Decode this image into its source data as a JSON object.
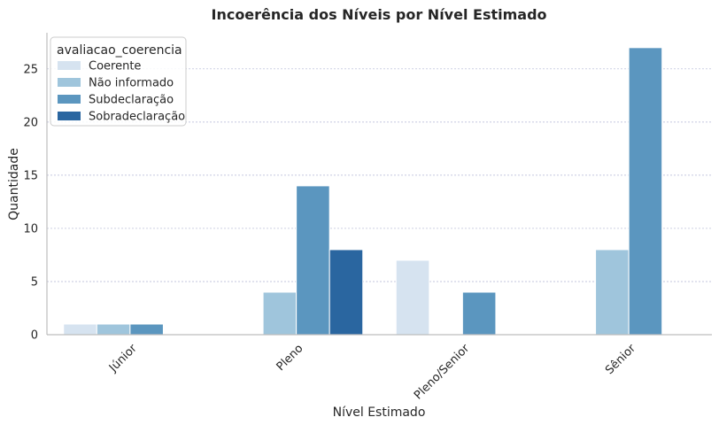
{
  "chart_data": {
    "type": "bar",
    "title": "Incoerência dos Níveis por Nível Estimado",
    "xlabel": "Nível Estimado",
    "ylabel": "Quantidade",
    "categories": [
      "Júnior",
      "Pleno",
      "Pleno/Senior",
      "Sênior"
    ],
    "series": [
      {
        "name": "Coerente",
        "color": "#d6e3f0",
        "values": [
          1,
          0,
          7,
          0
        ]
      },
      {
        "name": "Não informado",
        "color": "#9fc5dc",
        "values": [
          1,
          4,
          0,
          8
        ]
      },
      {
        "name": "Subdeclaração",
        "color": "#5b96bf",
        "values": [
          1,
          14,
          4,
          27
        ]
      },
      {
        "name": "Sobradeclaração",
        "color": "#2a66a0",
        "values": [
          0,
          8,
          0,
          0
        ]
      }
    ],
    "ylim": [
      0,
      28.4
    ],
    "yticks": [
      0,
      5,
      10,
      15,
      20,
      25
    ],
    "legend": {
      "title": "avaliacao_coerencia",
      "position": "top-left"
    },
    "grid": {
      "y": true,
      "style": "dashed",
      "color": "#b0b4d4"
    },
    "x_tick_rotation": -45
  }
}
